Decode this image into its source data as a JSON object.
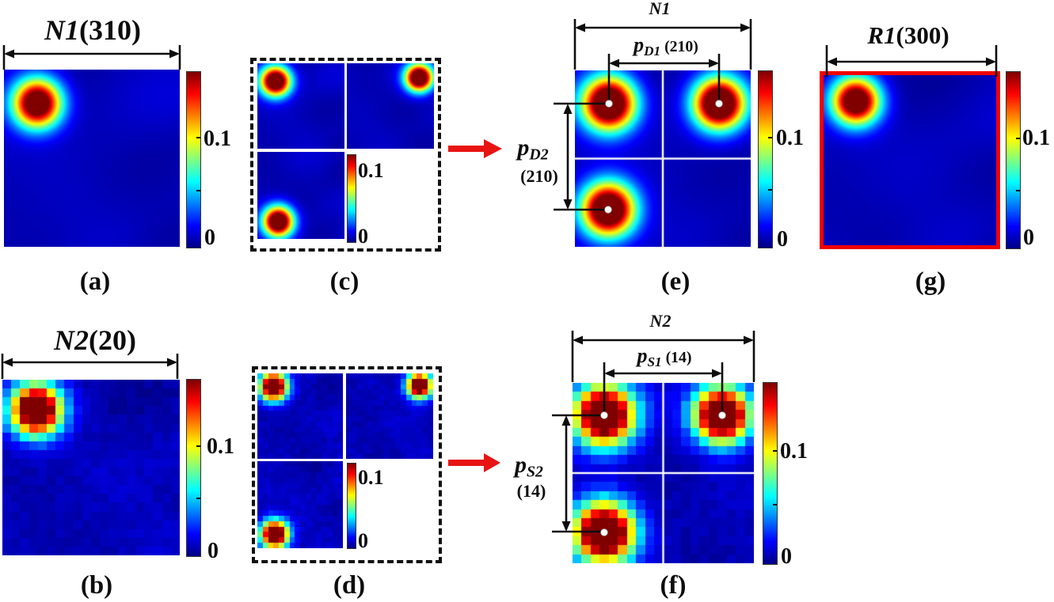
{
  "chart_data": {
    "type": "heatmap",
    "colormap": "jet",
    "value_range": [
      0,
      0.165
    ],
    "colorbar": {
      "max_label": "0.1",
      "min_label": "0",
      "tick_values": [
        0.1,
        0
      ]
    },
    "arrow_color": "#e81414",
    "highlight_border_color": "#f10000",
    "panels": {
      "a": {
        "caption": "(a)",
        "dim": {
          "name": "N1",
          "paren": "(310)",
          "value": 310
        },
        "render": {
          "grid": 0,
          "seed": 7,
          "blobs": [
            {
              "cx": 0.19,
              "cy": 0.19,
              "sigma": 0.095,
              "amp": 1.2
            }
          ]
        }
      },
      "b": {
        "caption": "(b)",
        "dim": {
          "name": "N2",
          "paren": "(20)",
          "value": 20
        },
        "render": {
          "grid": 20,
          "seed": 11,
          "blobs": [
            {
              "cx": 0.19,
              "cy": 0.17,
              "sigma": 0.1,
              "amp": 1.3
            }
          ]
        }
      },
      "c": {
        "caption": "(c)",
        "subs": [
          {
            "grid": 0,
            "seed": 21,
            "blobs": [
              {
                "cx": 0.21,
                "cy": 0.21,
                "sigma": 0.12,
                "amp": 1.25
              }
            ]
          },
          {
            "grid": 0,
            "seed": 22,
            "blobs": [
              {
                "cx": 0.83,
                "cy": 0.17,
                "sigma": 0.11,
                "amp": 1.25
              }
            ]
          },
          {
            "grid": 0,
            "seed": 23,
            "blobs": [
              {
                "cx": 0.24,
                "cy": 0.8,
                "sigma": 0.12,
                "amp": 1.25
              }
            ]
          }
        ]
      },
      "d": {
        "caption": "(d)",
        "subs": [
          {
            "grid": 16,
            "seed": 31,
            "blobs": [
              {
                "cx": 0.185,
                "cy": 0.155,
                "sigma": 0.11,
                "amp": 1.35
              }
            ]
          },
          {
            "grid": 16,
            "seed": 32,
            "blobs": [
              {
                "cx": 0.84,
                "cy": 0.14,
                "sigma": 0.1,
                "amp": 1.35
              }
            ]
          },
          {
            "grid": 16,
            "seed": 33,
            "blobs": [
              {
                "cx": 0.2,
                "cy": 0.84,
                "sigma": 0.11,
                "amp": 1.35
              }
            ]
          }
        ]
      },
      "e": {
        "caption": "(e)",
        "span": {
          "name": "N1"
        },
        "p1": {
          "base": "p",
          "sub": "D1",
          "paren": "(210)",
          "value": 210
        },
        "p2": {
          "base": "p",
          "sub": "D2",
          "paren": "(210)",
          "value": 210
        },
        "render": {
          "grid": 0,
          "seed": 41,
          "cross": true,
          "blobs": [
            {
              "cx": 0.194,
              "cy": 0.188,
              "sigma": 0.105,
              "amp": 1.3
            },
            {
              "cx": 0.82,
              "cy": 0.188,
              "sigma": 0.1,
              "amp": 1.3
            },
            {
              "cx": 0.189,
              "cy": 0.789,
              "sigma": 0.105,
              "amp": 1.3
            }
          ]
        }
      },
      "f": {
        "caption": "(f)",
        "span": {
          "name": "N2"
        },
        "p1": {
          "base": "p",
          "sub": "S1",
          "paren": "(14)",
          "value": 14
        },
        "p2": {
          "base": "p",
          "sub": "S2",
          "paren": "(14)",
          "value": 14
        },
        "render": {
          "grid": 20,
          "seed": 51,
          "cross": true,
          "blobs": [
            {
              "cx": 0.175,
              "cy": 0.18,
              "sigma": 0.115,
              "amp": 1.35
            },
            {
              "cx": 0.825,
              "cy": 0.18,
              "sigma": 0.105,
              "amp": 1.35
            },
            {
              "cx": 0.175,
              "cy": 0.829,
              "sigma": 0.115,
              "amp": 1.35
            }
          ]
        }
      },
      "g": {
        "caption": "(g)",
        "dim": {
          "name": "R1",
          "paren": "(300)",
          "value": 300
        },
        "render": {
          "grid": 0,
          "seed": 61,
          "blobs": [
            {
              "cx": 0.188,
              "cy": 0.153,
              "sigma": 0.095,
              "amp": 1.2
            }
          ]
        }
      }
    }
  }
}
